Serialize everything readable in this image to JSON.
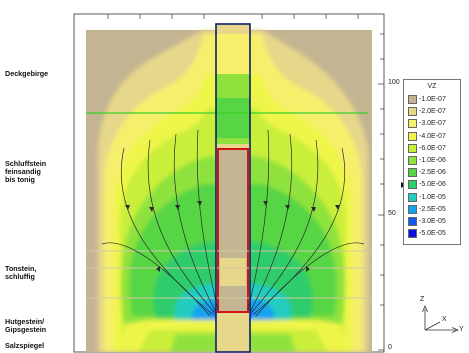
{
  "layers": [
    {
      "label": "Deckgebirge"
    },
    {
      "label": "Schluffstein\nfeinsandig\nbis tonig"
    },
    {
      "label": "Tonstein,\nschluffig"
    },
    {
      "label": "Hutgestein/\nGipsgestein"
    },
    {
      "label": "Salzspiegel"
    }
  ],
  "depth_axis": {
    "ticks": [
      "100",
      "50",
      "0"
    ]
  },
  "legend": {
    "title": "VZ",
    "entries": [
      {
        "label": "-1.0E-07",
        "color": "#c4b592"
      },
      {
        "label": "-2.0E-07",
        "color": "#e6d78a"
      },
      {
        "label": "-3.0E-07",
        "color": "#f6ef6c"
      },
      {
        "label": "-4.0E-07",
        "color": "#eef54a"
      },
      {
        "label": "-6.0E-07",
        "color": "#c9ef3a"
      },
      {
        "label": "-1.0E-06",
        "color": "#8fe23c"
      },
      {
        "label": "-2.5E-06",
        "color": "#56d545"
      },
      {
        "label": "-5.0E-06",
        "color": "#2fcc6a"
      },
      {
        "label": "-1.0E-05",
        "color": "#22ccbf"
      },
      {
        "label": "-2.5E-05",
        "color": "#16a4ee"
      },
      {
        "label": "-3.0E-05",
        "color": "#1258ee"
      },
      {
        "label": "-5.0E-05",
        "color": "#0d0fe0"
      }
    ]
  },
  "triad": {
    "z_label": "Z",
    "x_label": "X",
    "y_label": "Y"
  },
  "colors": {
    "shaft_outline": "#0a1f6a",
    "shaft_red": "#d11414",
    "horizon_green": "#3ccf2c",
    "horizon_tan": "#d2c9a2",
    "streamline": "#2a2a2a"
  }
}
